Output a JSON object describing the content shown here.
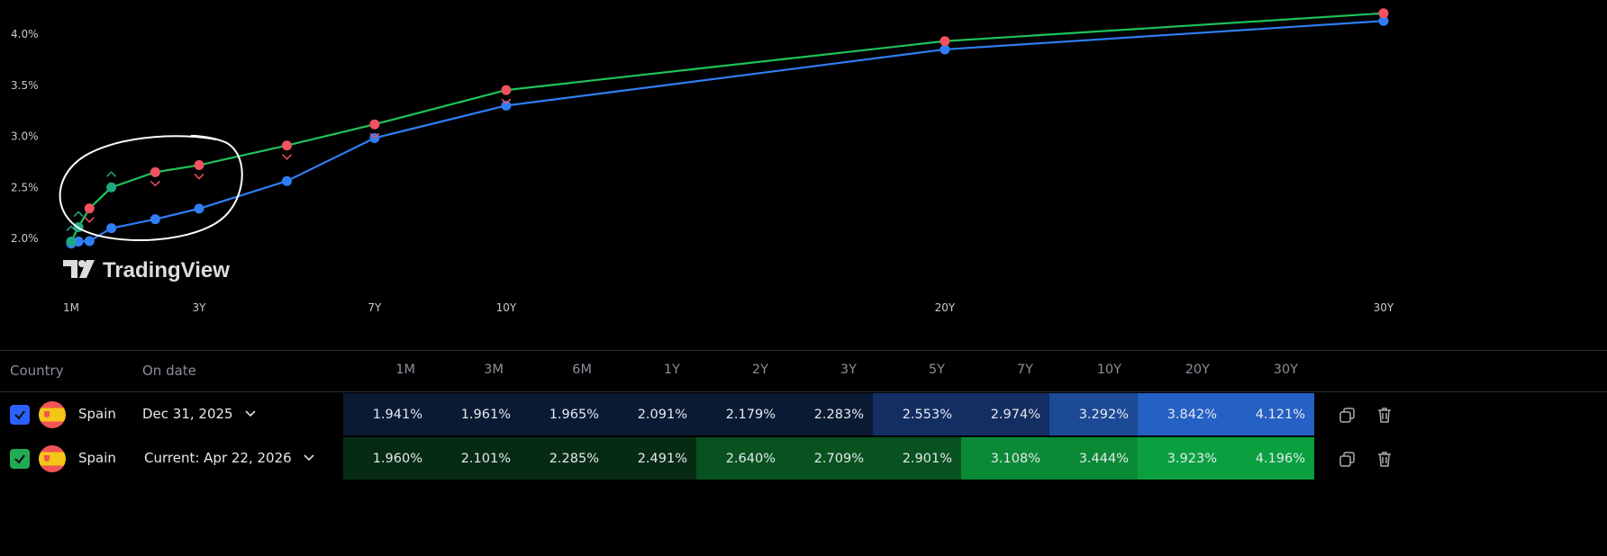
{
  "chart_data": {
    "type": "line",
    "categories": [
      "1M",
      "3M",
      "6M",
      "1Y",
      "2Y",
      "3Y",
      "5Y",
      "7Y",
      "10Y",
      "20Y",
      "30Y"
    ],
    "x_years": [
      0.0833,
      0.25,
      0.5,
      1,
      2,
      3,
      5,
      7,
      10,
      20,
      30
    ],
    "x_tick_labels": [
      "1M",
      "3Y",
      "7Y",
      "10Y",
      "20Y",
      "30Y"
    ],
    "x_tick_years": [
      0.0833,
      3,
      7,
      10,
      20,
      30
    ],
    "y_tick_labels": [
      "2.0%",
      "2.5%",
      "3.0%",
      "3.5%",
      "4.0%"
    ],
    "y_ticks": [
      2.0,
      2.5,
      3.0,
      3.5,
      4.0
    ],
    "ylim": [
      1.8,
      4.2
    ],
    "series": [
      {
        "values": [
          1.941,
          1.961,
          1.965,
          2.091,
          2.179,
          2.283,
          2.553,
          2.974,
          3.292,
          3.842,
          4.121
        ],
        "color": "#2f7ef5"
      },
      {
        "values": [
          1.96,
          2.101,
          2.285,
          2.491,
          2.64,
          2.709,
          2.901,
          3.108,
          3.444,
          3.923,
          4.196
        ],
        "color": "#1ec25a",
        "markers": [
          "up",
          "up",
          "down",
          "up",
          "down",
          "down",
          "down",
          "down",
          "down",
          "none",
          "none"
        ]
      }
    ],
    "marker_colors": {
      "up": "#1fa883",
      "down": "#f2525f",
      "none": "#f2525f"
    },
    "grid": false
  },
  "watermark": "TradingView",
  "table": {
    "headers": {
      "country": "Country",
      "date": "On date",
      "tenors": [
        "1M",
        "3M",
        "6M",
        "1Y",
        "2Y",
        "3Y",
        "5Y",
        "7Y",
        "10Y",
        "20Y",
        "30Y"
      ]
    },
    "rows": [
      {
        "country": "Spain",
        "date": "Dec 31, 2025",
        "checkbox_color": "#2962ff",
        "values": [
          "1.941%",
          "1.961%",
          "1.965%",
          "2.091%",
          "2.179%",
          "2.283%",
          "2.553%",
          "2.974%",
          "3.292%",
          "3.842%",
          "4.121%"
        ],
        "cell_colors": [
          "#0b1a33",
          "#0b1a33",
          "#0b1a33",
          "#0b1a33",
          "#0b1a33",
          "#0b1a33",
          "#132e63",
          "#132e63",
          "#1d4a97",
          "#2560c4",
          "#2560c4"
        ]
      },
      {
        "country": "Spain",
        "date": "Current: Apr 22, 2026",
        "checkbox_color": "#22ab55",
        "values": [
          "1.960%",
          "2.101%",
          "2.285%",
          "2.491%",
          "2.640%",
          "2.709%",
          "2.901%",
          "3.108%",
          "3.444%",
          "3.923%",
          "4.196%"
        ],
        "cell_colors": [
          "#062b14",
          "#062b14",
          "#062b14",
          "#062b14",
          "#08521f",
          "#08521f",
          "#08521f",
          "#0a8a35",
          "#0a8a35",
          "#0aa040",
          "#0aa040"
        ]
      }
    ]
  }
}
